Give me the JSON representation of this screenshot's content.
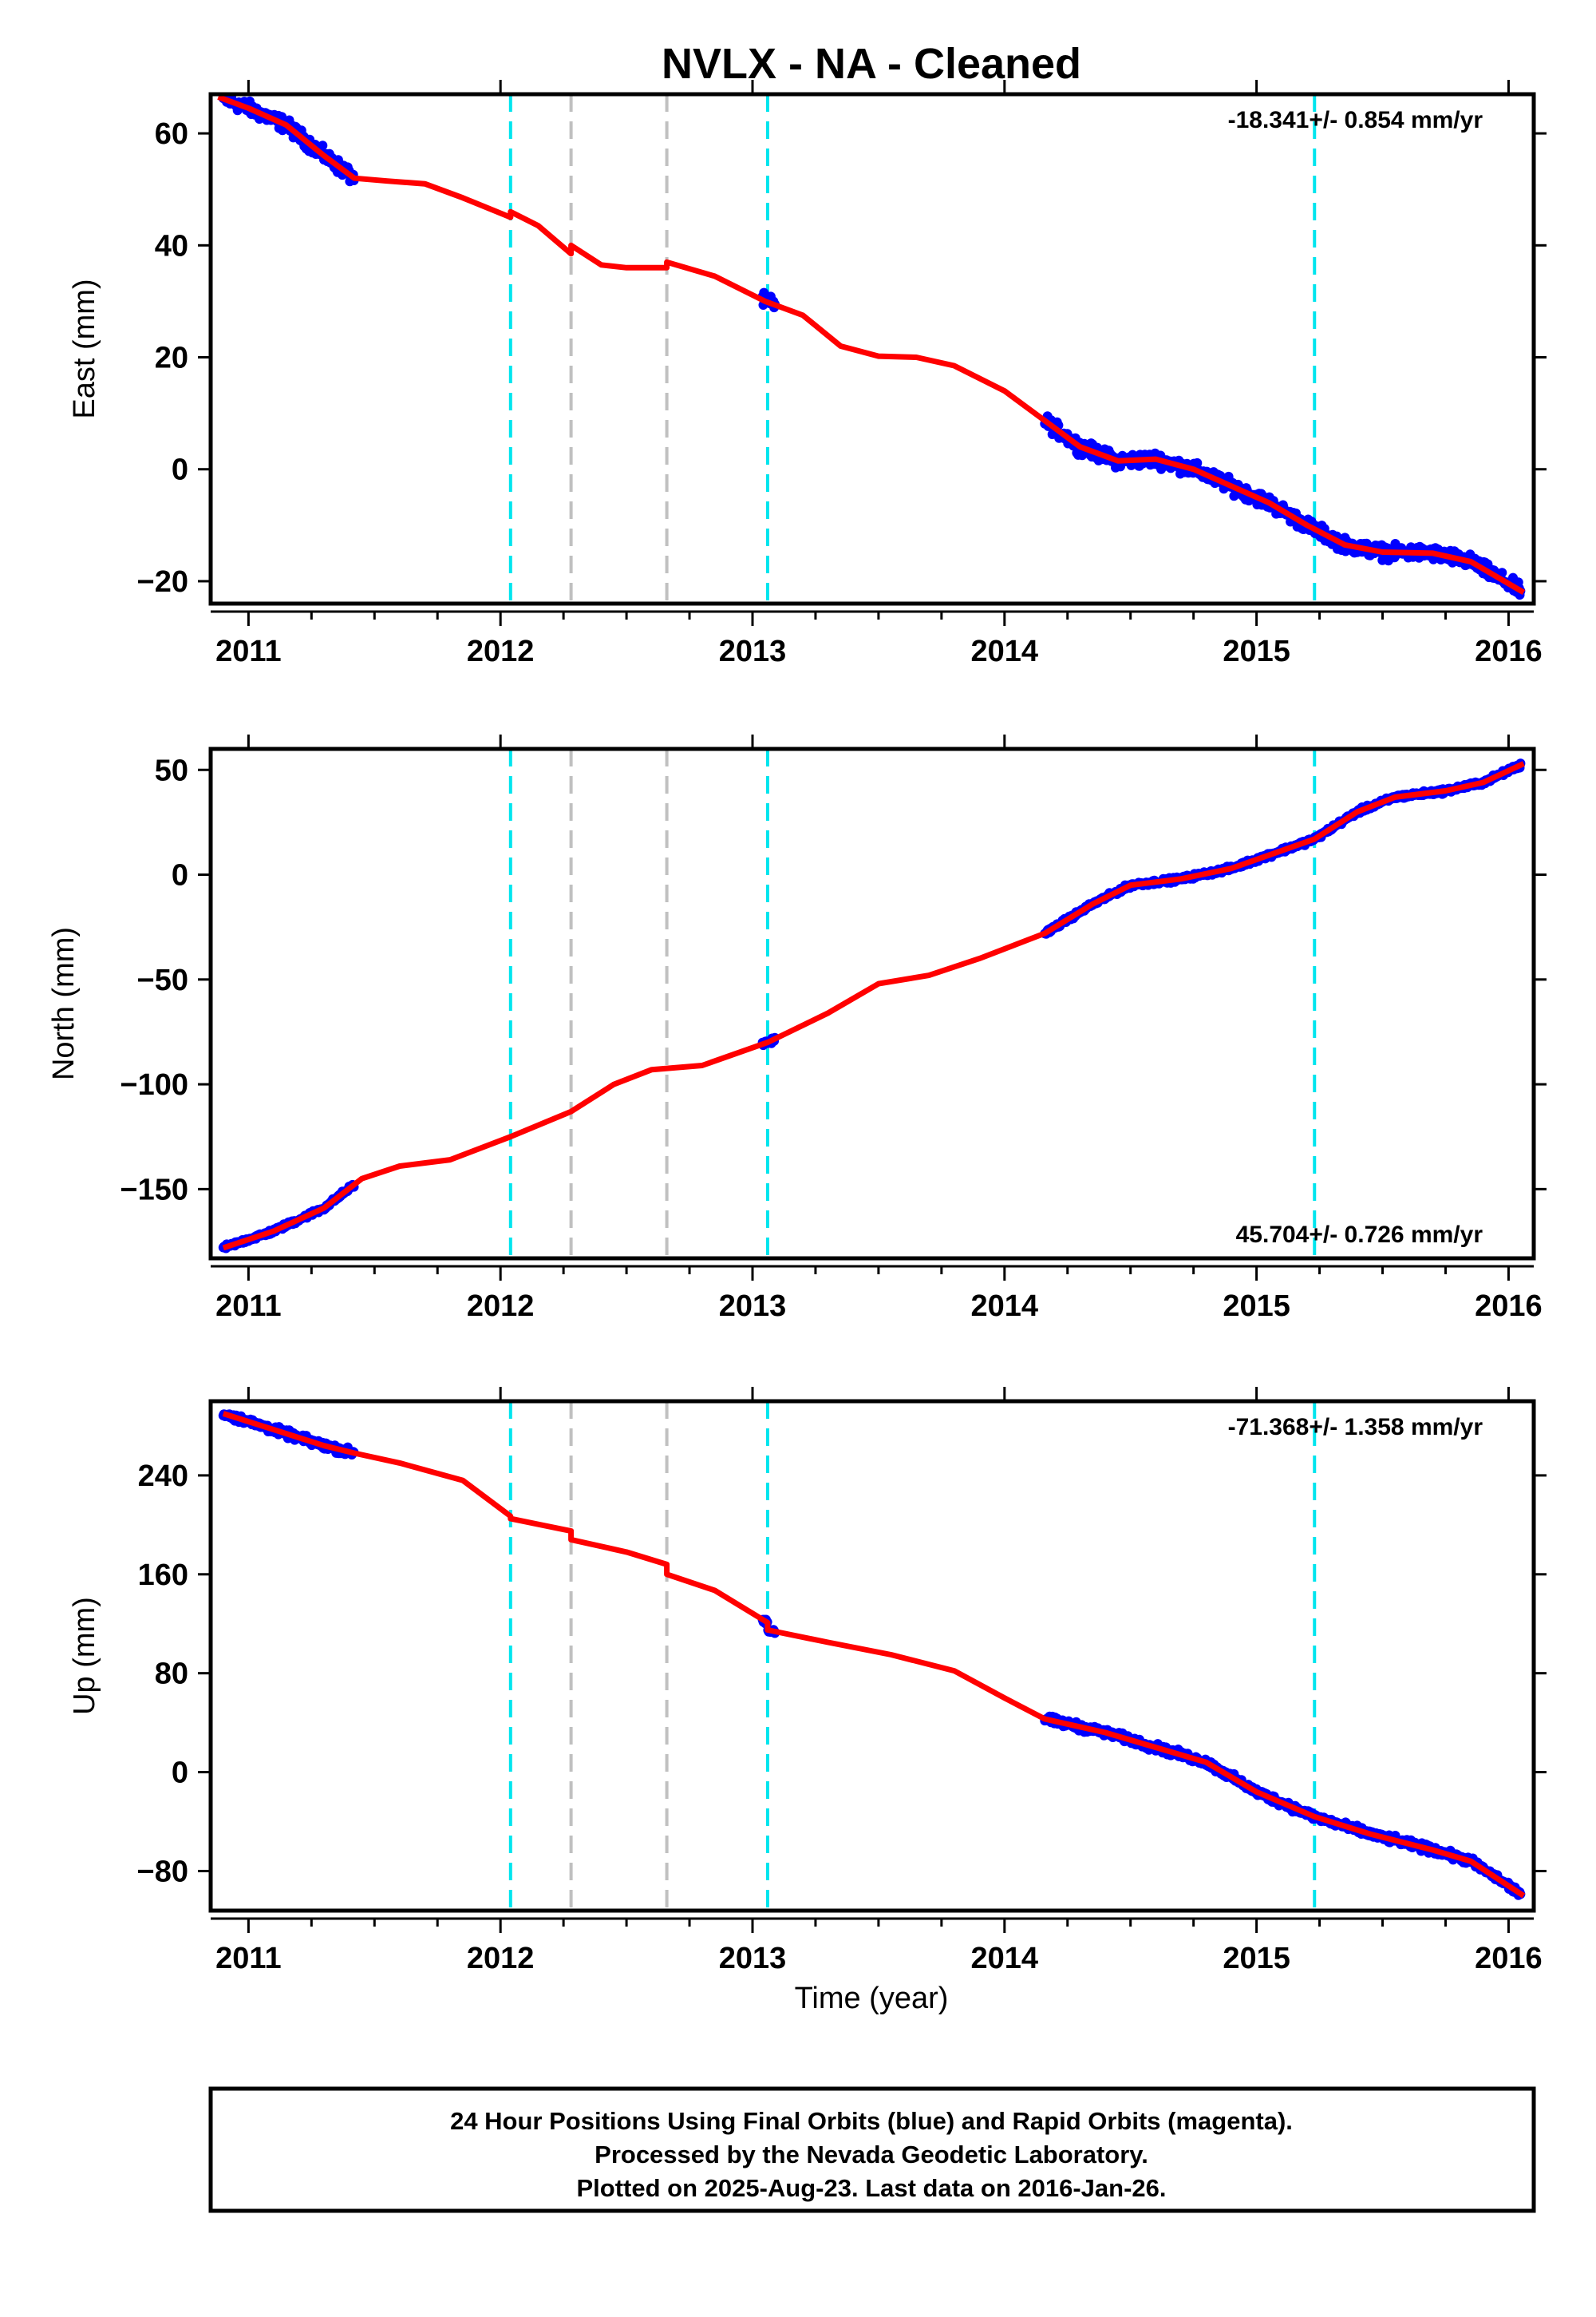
{
  "title": "NVLX  - NA - Cleaned",
  "colors": {
    "data_points": "#0000ff",
    "model_line": "#ff0000",
    "equipment_change": "#00e5ee",
    "other_event": "#c0c0c0"
  },
  "x_axis": {
    "label": "Time (year)",
    "ticks": [
      "2011",
      "2012",
      "2013",
      "2014",
      "2015",
      "2016"
    ],
    "range": [
      2010.85,
      2016.1
    ]
  },
  "events": {
    "equipment_change_years": [
      2012.04,
      2013.06,
      2015.23
    ],
    "other_event_years": [
      2012.28,
      2012.66
    ]
  },
  "footer": {
    "line1": "24 Hour Positions Using Final Orbits (blue) and Rapid Orbits (magenta).",
    "line2": "Processed by the Nevada Geodetic Laboratory.",
    "line3": "Plotted on 2025-Aug-23. Last data on 2016-Jan-26."
  },
  "chart_data": [
    {
      "type": "scatter",
      "panel": "east",
      "ylabel": "East (mm)",
      "rate": "-18.341+/- 0.854 mm/yr",
      "rate_position": "top-right",
      "ylim": [
        -24,
        67
      ],
      "yticks": [
        {
          "v": 60,
          "t": "60"
        },
        {
          "v": 40,
          "t": "40"
        },
        {
          "v": 20,
          "t": "20"
        },
        {
          "v": 0,
          "t": "0"
        },
        {
          "v": -20,
          "t": "−20"
        }
      ],
      "data_segments": [
        [
          2010.9,
          2011.42
        ],
        [
          2013.04,
          2013.09
        ],
        [
          2014.16,
          2016.05
        ]
      ],
      "model": [
        {
          "x": 2010.88,
          "y": 66.5
        },
        {
          "x": 2011.0,
          "y": 64.5
        },
        {
          "x": 2011.15,
          "y": 61.5
        },
        {
          "x": 2011.3,
          "y": 56.0
        },
        {
          "x": 2011.42,
          "y": 52.0
        },
        {
          "x": 2011.55,
          "y": 51.5
        },
        {
          "x": 2011.7,
          "y": 51.0
        },
        {
          "x": 2011.85,
          "y": 48.5
        },
        {
          "x": 2012.04,
          "y": 45.0,
          "gap": 1
        },
        {
          "x": 2012.04,
          "y": 46.0
        },
        {
          "x": 2012.15,
          "y": 43.5
        },
        {
          "x": 2012.28,
          "y": 38.5,
          "gap": 1
        },
        {
          "x": 2012.28,
          "y": 40.0
        },
        {
          "x": 2012.4,
          "y": 36.5
        },
        {
          "x": 2012.5,
          "y": 36.0
        },
        {
          "x": 2012.66,
          "y": 36.0,
          "gap": 1
        },
        {
          "x": 2012.66,
          "y": 37.0
        },
        {
          "x": 2012.85,
          "y": 34.5
        },
        {
          "x": 2013.05,
          "y": 30.0
        },
        {
          "x": 2013.2,
          "y": 27.5
        },
        {
          "x": 2013.35,
          "y": 22.0
        },
        {
          "x": 2013.5,
          "y": 20.2
        },
        {
          "x": 2013.65,
          "y": 20.0
        },
        {
          "x": 2013.8,
          "y": 18.5
        },
        {
          "x": 2014.0,
          "y": 14.0
        },
        {
          "x": 2014.15,
          "y": 9.0
        },
        {
          "x": 2014.3,
          "y": 4.0
        },
        {
          "x": 2014.45,
          "y": 1.5
        },
        {
          "x": 2014.6,
          "y": 1.8
        },
        {
          "x": 2014.75,
          "y": 0.0
        },
        {
          "x": 2014.9,
          "y": -3.0
        },
        {
          "x": 2015.05,
          "y": -6.0
        },
        {
          "x": 2015.2,
          "y": -10.0
        },
        {
          "x": 2015.35,
          "y": -13.5
        },
        {
          "x": 2015.5,
          "y": -14.8
        },
        {
          "x": 2015.7,
          "y": -15.0
        },
        {
          "x": 2015.85,
          "y": -16.5
        },
        {
          "x": 2016.06,
          "y": -22.0
        }
      ],
      "noise": 1.8
    },
    {
      "type": "scatter",
      "panel": "north",
      "ylabel": "North (mm)",
      "rate": "45.704+/- 0.726 mm/yr",
      "rate_position": "bottom-right",
      "ylim": [
        -183,
        60
      ],
      "yticks": [
        {
          "v": 50,
          "t": "50"
        },
        {
          "v": 0,
          "t": "0"
        },
        {
          "v": -50,
          "t": "−50"
        },
        {
          "v": -100,
          "t": "−100"
        },
        {
          "v": -150,
          "t": "−150"
        }
      ],
      "data_segments": [
        [
          2010.9,
          2011.42
        ],
        [
          2013.04,
          2013.09
        ],
        [
          2014.16,
          2016.05
        ]
      ],
      "model": [
        {
          "x": 2010.9,
          "y": -178
        },
        {
          "x": 2011.1,
          "y": -170
        },
        {
          "x": 2011.3,
          "y": -159
        },
        {
          "x": 2011.45,
          "y": -145
        },
        {
          "x": 2011.6,
          "y": -139
        },
        {
          "x": 2011.8,
          "y": -136
        },
        {
          "x": 2012.04,
          "y": -125
        },
        {
          "x": 2012.28,
          "y": -113
        },
        {
          "x": 2012.45,
          "y": -100
        },
        {
          "x": 2012.6,
          "y": -93
        },
        {
          "x": 2012.8,
          "y": -91
        },
        {
          "x": 2013.06,
          "y": -80
        },
        {
          "x": 2013.3,
          "y": -66
        },
        {
          "x": 2013.5,
          "y": -52
        },
        {
          "x": 2013.7,
          "y": -48
        },
        {
          "x": 2013.9,
          "y": -40
        },
        {
          "x": 2014.16,
          "y": -28
        },
        {
          "x": 2014.35,
          "y": -14
        },
        {
          "x": 2014.5,
          "y": -5
        },
        {
          "x": 2014.7,
          "y": -2
        },
        {
          "x": 2014.9,
          "y": 3
        },
        {
          "x": 2015.23,
          "y": 17
        },
        {
          "x": 2015.4,
          "y": 30
        },
        {
          "x": 2015.55,
          "y": 37
        },
        {
          "x": 2015.75,
          "y": 40
        },
        {
          "x": 2015.9,
          "y": 44
        },
        {
          "x": 2016.06,
          "y": 53
        }
      ],
      "noise": 1.6
    },
    {
      "type": "scatter",
      "panel": "up",
      "ylabel": "Up (mm)",
      "rate": "-71.368+/- 1.358 mm/yr",
      "rate_position": "top-right",
      "ylim": [
        -112,
        300
      ],
      "yticks": [
        {
          "v": 240,
          "t": "240"
        },
        {
          "v": 160,
          "t": "160"
        },
        {
          "v": 80,
          "t": "80"
        },
        {
          "v": 0,
          "t": "0"
        },
        {
          "v": -80,
          "t": "−80"
        }
      ],
      "data_segments": [
        [
          2010.9,
          2011.42
        ],
        [
          2013.04,
          2013.09
        ],
        [
          2014.16,
          2016.05
        ]
      ],
      "model": [
        {
          "x": 2010.9,
          "y": 290
        },
        {
          "x": 2011.1,
          "y": 277
        },
        {
          "x": 2011.3,
          "y": 264
        },
        {
          "x": 2011.42,
          "y": 258
        },
        {
          "x": 2011.6,
          "y": 250
        },
        {
          "x": 2011.85,
          "y": 236
        },
        {
          "x": 2012.04,
          "y": 207,
          "gap": 1
        },
        {
          "x": 2012.04,
          "y": 205
        },
        {
          "x": 2012.28,
          "y": 195,
          "gap": 1
        },
        {
          "x": 2012.28,
          "y": 188
        },
        {
          "x": 2012.5,
          "y": 178
        },
        {
          "x": 2012.66,
          "y": 168,
          "gap": 1
        },
        {
          "x": 2012.66,
          "y": 160
        },
        {
          "x": 2012.85,
          "y": 147
        },
        {
          "x": 2013.06,
          "y": 121
        },
        {
          "x": 2013.06,
          "y": 115
        },
        {
          "x": 2013.3,
          "y": 105
        },
        {
          "x": 2013.55,
          "y": 95
        },
        {
          "x": 2013.8,
          "y": 82
        },
        {
          "x": 2014.0,
          "y": 60
        },
        {
          "x": 2014.16,
          "y": 43
        },
        {
          "x": 2014.4,
          "y": 32
        },
        {
          "x": 2014.6,
          "y": 20
        },
        {
          "x": 2014.8,
          "y": 8
        },
        {
          "x": 2015.0,
          "y": -16
        },
        {
          "x": 2015.23,
          "y": -36
        },
        {
          "x": 2015.45,
          "y": -50
        },
        {
          "x": 2015.7,
          "y": -63
        },
        {
          "x": 2015.85,
          "y": -72
        },
        {
          "x": 2016.06,
          "y": -100
        }
      ],
      "noise": 4.5
    }
  ]
}
